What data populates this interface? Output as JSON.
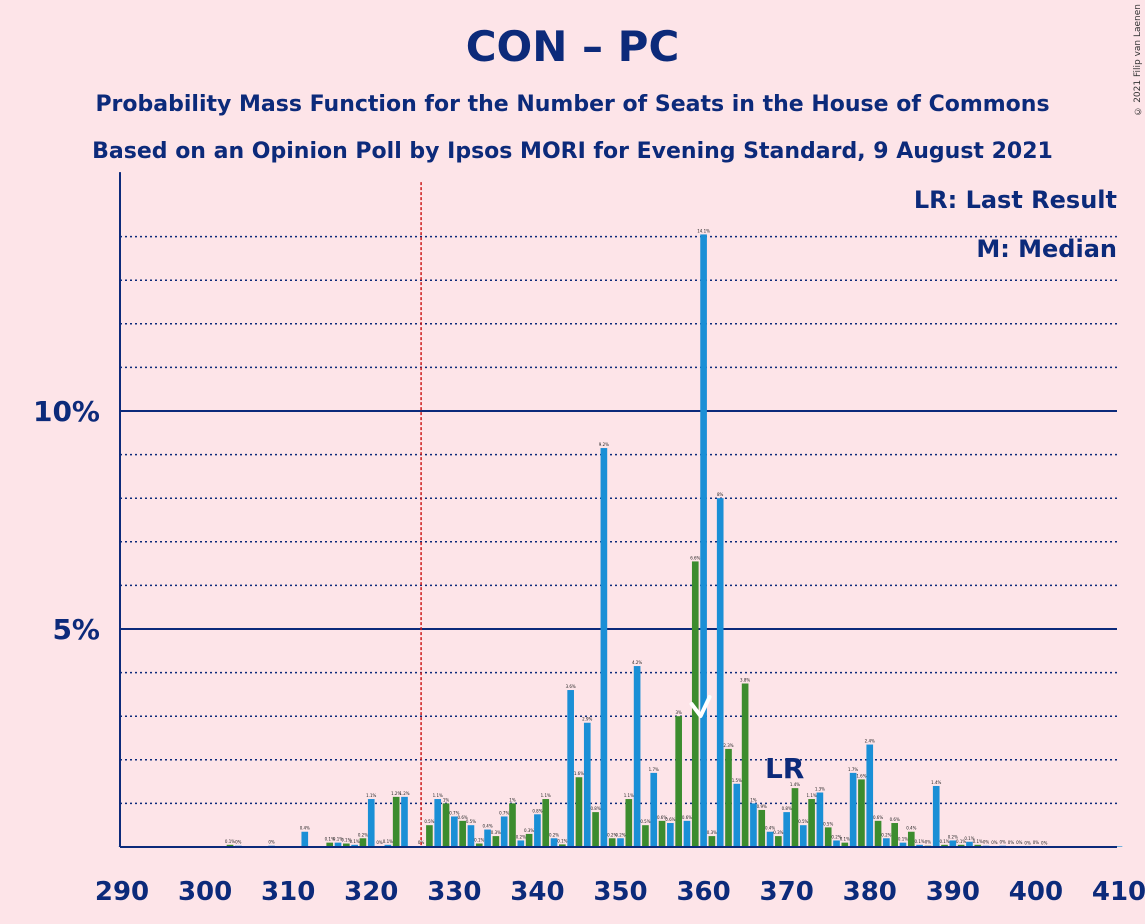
{
  "title": "CON – PC",
  "subtitle1": "Probability Mass Function for the Number of Seats in the House of Commons",
  "subtitle2": "Based on an Opinion Poll by Ipsos MORI for Evening Standard, 9 August 2021",
  "copyright": "© 2021 Filip van Laenen",
  "legend": {
    "last_result": "LR: Last Result",
    "median": "M: Median"
  },
  "colors": {
    "background": "#fde4e8",
    "axis": "#0c2a7a",
    "blue": "#1a8fd6",
    "green": "#3c8c2e",
    "majority_line": "#cc1a1a"
  },
  "chart_data": {
    "type": "bar",
    "x_tick_labels": [
      "290",
      "300",
      "310",
      "320",
      "330",
      "340",
      "350",
      "360",
      "370",
      "380",
      "390",
      "400",
      "410"
    ],
    "y_tick_labels": [
      "5%",
      "10%"
    ],
    "x": [
      290,
      291,
      292,
      293,
      294,
      295,
      296,
      297,
      298,
      299,
      300,
      301,
      302,
      303,
      304,
      305,
      306,
      307,
      308,
      309,
      310,
      311,
      312,
      313,
      314,
      315,
      316,
      317,
      318,
      319,
      320,
      321,
      322,
      323,
      324,
      325,
      326,
      327,
      328,
      329,
      330,
      331,
      332,
      333,
      334,
      335,
      336,
      337,
      338,
      339,
      340,
      341,
      342,
      343,
      344,
      345,
      346,
      347,
      348,
      349,
      350,
      351,
      352,
      353,
      354,
      355,
      356,
      357,
      358,
      359,
      360,
      361,
      362,
      363,
      364,
      365,
      366,
      367,
      368,
      369,
      370,
      371,
      372,
      373,
      374,
      375,
      376,
      377,
      378,
      379,
      380,
      381,
      382,
      383,
      384,
      385,
      386,
      387,
      388,
      389,
      390,
      391,
      392,
      393,
      394,
      395,
      396,
      397,
      398,
      399,
      400,
      401,
      402,
      403,
      404,
      405,
      406,
      407,
      408,
      409,
      410
    ],
    "values": [
      0,
      0,
      0,
      0,
      0,
      0,
      0,
      0,
      0,
      0,
      0,
      0,
      0,
      0.05,
      0.03,
      0,
      0,
      0,
      0.03,
      0,
      0,
      0,
      0.35,
      0,
      0,
      0.1,
      0.1,
      0.08,
      0.05,
      0.2,
      1.1,
      0.02,
      0.05,
      1.15,
      1.15,
      0,
      0.02,
      0.5,
      1.1,
      1.0,
      0.7,
      0.6,
      0.5,
      0.08,
      0.4,
      0.25,
      0.7,
      1.0,
      0.15,
      0.3,
      0.75,
      1.1,
      0.2,
      0.06,
      3.6,
      1.6,
      2.85,
      0.8,
      9.15,
      0.2,
      0.2,
      1.1,
      4.15,
      0.5,
      1.7,
      0.6,
      0.55,
      3.0,
      0.6,
      6.55,
      14.05,
      0.25,
      8.0,
      2.25,
      1.45,
      3.75,
      1.0,
      0.85,
      0.35,
      0.25,
      0.8,
      1.35,
      0.5,
      1.1,
      1.25,
      0.45,
      0.15,
      0.1,
      1.7,
      1.55,
      2.35,
      0.6,
      0.2,
      0.55,
      0.1,
      0.35,
      0.05,
      0.03,
      1.4,
      0.05,
      0.15,
      0.05,
      0.12,
      0.05,
      0.03,
      0.02,
      0.03,
      0.02,
      0.02,
      0.01,
      0.02,
      0.01,
      0,
      0,
      0,
      0,
      0,
      0,
      0,
      0,
      0
    ],
    "ylim": [
      0,
      15.25
    ],
    "majority_line_x": 326,
    "last_result_x": 370,
    "median_x": 360,
    "last_result_label": "LR",
    "bar_color_pattern": "even seats blue, odd seats green",
    "grid": "dotted major gridlines every 1%, solid lines at 5% and 10%"
  }
}
